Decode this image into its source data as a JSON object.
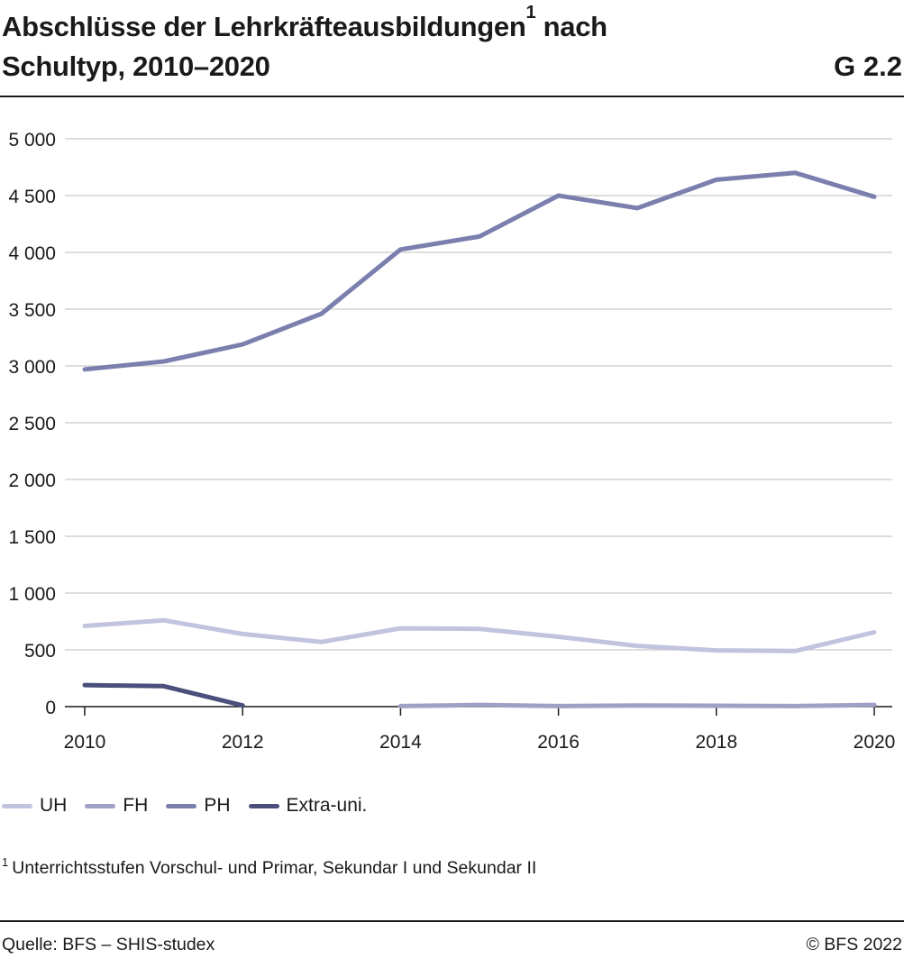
{
  "title_text": "Abschlüsse der Lehrkräfteausbildungen",
  "title_sup": "1",
  "title_text2": "nach",
  "title_line2": "Schultyp, 2010–2020",
  "graphic_number": "G 2.2",
  "footnote_marker": "1",
  "footnote_text": "Unterrichtsstufen Vorschul- und Primar, Sekundar I und Sekundar II",
  "source": "Quelle: BFS – SHIS-studex",
  "copyright": "© BFS 2022",
  "chart_data": {
    "type": "line",
    "title": "Abschlüsse der Lehrkräfteausbildungen nach Schultyp, 2010–2020",
    "xlabel": "",
    "ylabel": "",
    "xlim": [
      2010,
      2020
    ],
    "ylim": [
      0,
      5000
    ],
    "x_ticks": [
      2010,
      2012,
      2014,
      2016,
      2018,
      2020
    ],
    "x_tick_labels": [
      "2010",
      "2012",
      "2014",
      "2016",
      "2018",
      "2020"
    ],
    "y_ticks": [
      0,
      500,
      1000,
      1500,
      2000,
      2500,
      3000,
      3500,
      4000,
      4500,
      5000
    ],
    "y_tick_labels": [
      "0",
      "500",
      "1 000",
      "1 500",
      "2 000",
      "2 500",
      "3 000",
      "3 500",
      "4 000",
      "4 500",
      "5 000"
    ],
    "grid": true,
    "legend_position": "bottom-left",
    "series": [
      {
        "name": "UH",
        "color": "#c2c3df",
        "x": [
          2010,
          2011,
          2012,
          2013,
          2014,
          2015,
          2016,
          2017,
          2018,
          2019,
          2020
        ],
        "values": [
          710,
          760,
          640,
          570,
          690,
          685,
          615,
          535,
          495,
          490,
          655
        ]
      },
      {
        "name": "FH",
        "color": "#9ea1c5",
        "x": [
          2014,
          2015,
          2016,
          2017,
          2018,
          2019,
          2020
        ],
        "values": [
          5,
          15,
          5,
          10,
          8,
          5,
          15
        ]
      },
      {
        "name": "PH",
        "color": "#7b7fae",
        "x": [
          2010,
          2011,
          2012,
          2013,
          2014,
          2015,
          2016,
          2017,
          2018,
          2019,
          2020
        ],
        "values": [
          2970,
          3040,
          3190,
          3460,
          4025,
          4140,
          4500,
          4390,
          4640,
          4700,
          4490
        ]
      },
      {
        "name": "Extra-uni.",
        "color": "#4b4f7b",
        "x": [
          2010,
          2011,
          2012
        ],
        "values": [
          190,
          180,
          10
        ]
      }
    ]
  }
}
